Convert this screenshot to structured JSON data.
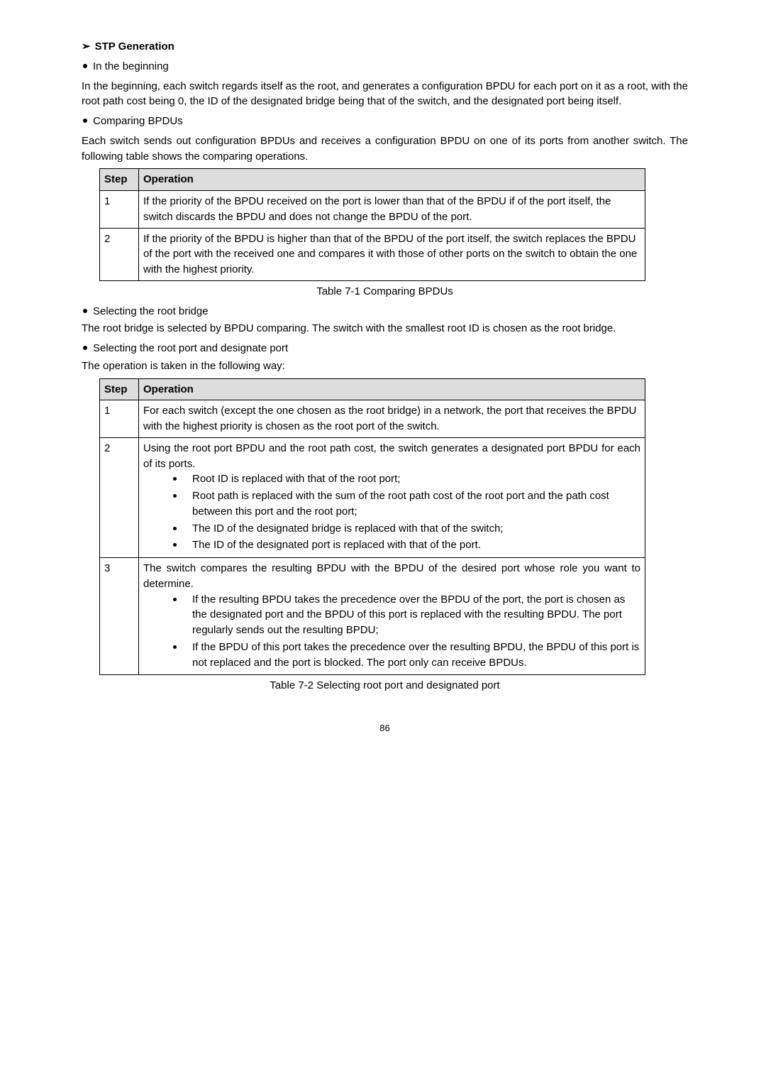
{
  "section": {
    "heading1": "STP Generation",
    "bullet1": "In the beginning",
    "para1": "In the beginning, each switch regards itself as the root, and generates a configuration BPDU for each port on it as a root, with the root path cost being 0, the ID of the designated bridge being that of the switch, and the designated port being itself.",
    "bullet2": "Comparing BPDUs",
    "para2": "Each switch sends out configuration BPDUs and receives a configuration BPDU on one of its ports from another switch. The following table shows the comparing operations."
  },
  "table1": {
    "caption": "Table 7-1 Comparing BPDUs",
    "header": {
      "c1": "Step",
      "c2": "Operation"
    },
    "rows": [
      {
        "step": "1",
        "op": "If the priority of the BPDU received on the port is lower than that of the BPDU if of the port itself, the switch discards the BPDU and does not change the BPDU of the port."
      },
      {
        "step": "2",
        "op": "If the priority of the BPDU is higher than that of the BPDU of the port itself, the switch replaces the BPDU of the port with the received one and compares it with those of other ports on the switch to obtain the one with the highest priority."
      }
    ]
  },
  "mid": {
    "bullet3": "Selecting the root bridge",
    "para3": "The root bridge is selected by BPDU comparing. The switch with the smallest root ID is chosen as the root bridge.",
    "bullet4": "Selecting the root port and designate port",
    "para4": "The operation is taken in the following way:"
  },
  "table2": {
    "caption": "Table 7-2 Selecting root port and designated port",
    "header": {
      "c1": "Step",
      "c2": "Operation"
    },
    "row1": {
      "step": "1",
      "op": "For each switch (except the one chosen as the root bridge) in a network, the port that receives the BPDU with the highest priority is chosen as the root port of the switch."
    },
    "row2": {
      "step": "2",
      "lead": "Using the root port BPDU and the root path cost, the switch generates a designated port BPDU for each of its ports.",
      "items": [
        "Root ID is replaced with that of the root port;",
        "Root path is replaced with the sum of the root path cost of the root port and the path cost between this port and the root port;",
        "The ID of the designated bridge is replaced with that of the switch;",
        "The ID of the designated port is replaced with that of the port."
      ]
    },
    "row3": {
      "step": "3",
      "lead": "The switch compares the resulting BPDU with the BPDU of the desired port whose role you want to determine.",
      "items": [
        "If the resulting BPDU takes the precedence over the BPDU of the port, the port is chosen as the designated port and the BPDU of this port is replaced with the resulting BPDU. The port regularly sends out the resulting BPDU;",
        "If the BPDU of this port takes the precedence over the resulting BPDU, the BPDU of this port is not replaced and the port is blocked. The port only can receive BPDUs."
      ]
    }
  },
  "page": "86"
}
